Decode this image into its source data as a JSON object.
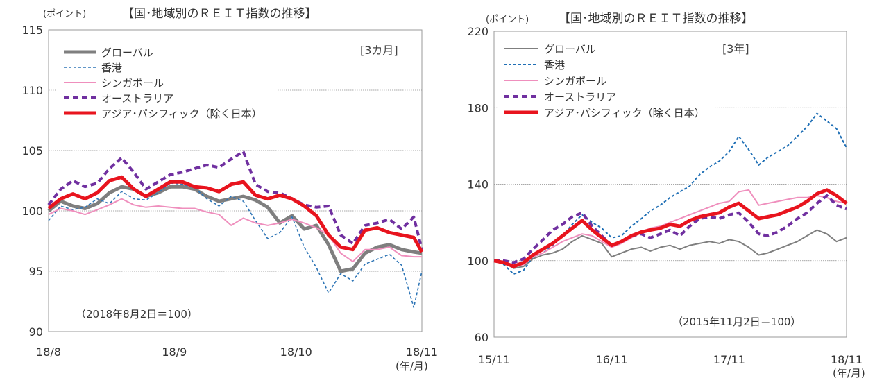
{
  "chart_data": [
    {
      "type": "line",
      "title": "【国･地域別のＲＥＩＴ指数の推移】",
      "ylabel": "(ポイント)",
      "period_label": "[3カ月]",
      "base_note": "（2018年8月2日＝100）",
      "x_unit": "(年/月)",
      "xlim": [
        "2018-08-02",
        "2018-11-02"
      ],
      "ylim": [
        90,
        115
      ],
      "yticks": [
        90,
        95,
        100,
        105,
        110,
        115
      ],
      "xtick_labels": [
        {
          "date": "2018-08-02",
          "label": "18/8"
        },
        {
          "date": "2018-09-02",
          "label": "18/9"
        },
        {
          "date": "2018-10-02",
          "label": "18/10"
        },
        {
          "date": "2018-11-02",
          "label": "18/11"
        }
      ],
      "grid": true,
      "legend_position": "top-left",
      "series": [
        {
          "name": "グローバル",
          "color": "#7f7f7f",
          "style": "solid-thick",
          "x": [
            "2018-08-02",
            "2018-08-05",
            "2018-08-08",
            "2018-08-11",
            "2018-08-14",
            "2018-08-17",
            "2018-08-20",
            "2018-08-23",
            "2018-08-26",
            "2018-08-29",
            "2018-09-01",
            "2018-09-04",
            "2018-09-07",
            "2018-09-10",
            "2018-09-13",
            "2018-09-16",
            "2018-09-19",
            "2018-09-22",
            "2018-09-25",
            "2018-09-28",
            "2018-10-01",
            "2018-10-04",
            "2018-10-07",
            "2018-10-10",
            "2018-10-13",
            "2018-10-16",
            "2018-10-19",
            "2018-10-22",
            "2018-10-25",
            "2018-10-28",
            "2018-10-31",
            "2018-11-02"
          ],
          "values": [
            100.0,
            100.8,
            100.4,
            100.2,
            100.6,
            101.5,
            102.0,
            101.8,
            101.2,
            101.5,
            102.0,
            102.0,
            101.8,
            101.2,
            100.8,
            101.0,
            101.2,
            100.9,
            100.3,
            99.0,
            99.6,
            98.5,
            98.8,
            97.2,
            95.0,
            95.2,
            96.5,
            97.0,
            97.2,
            96.8,
            96.6,
            96.5
          ]
        },
        {
          "name": "香港",
          "color": "#2e75b6",
          "style": "dash-fine",
          "x": [
            "2018-08-02",
            "2018-08-05",
            "2018-08-08",
            "2018-08-11",
            "2018-08-14",
            "2018-08-17",
            "2018-08-20",
            "2018-08-23",
            "2018-08-26",
            "2018-08-29",
            "2018-09-01",
            "2018-09-04",
            "2018-09-07",
            "2018-09-10",
            "2018-09-13",
            "2018-09-16",
            "2018-09-19",
            "2018-09-22",
            "2018-09-25",
            "2018-09-28",
            "2018-10-01",
            "2018-10-04",
            "2018-10-07",
            "2018-10-10",
            "2018-10-13",
            "2018-10-16",
            "2018-10-19",
            "2018-10-22",
            "2018-10-25",
            "2018-10-28",
            "2018-10-31",
            "2018-11-02"
          ],
          "values": [
            99.2,
            100.4,
            100.1,
            100.3,
            101.0,
            100.6,
            101.6,
            101.0,
            100.9,
            101.5,
            102.3,
            102.2,
            101.9,
            101.0,
            100.4,
            101.2,
            100.8,
            99.2,
            97.7,
            98.2,
            99.5,
            97.0,
            95.3,
            93.2,
            94.8,
            94.2,
            95.6,
            96.0,
            96.4,
            95.5,
            92.0,
            95.0
          ]
        },
        {
          "name": "シンガポール",
          "color": "#ef8fbd",
          "style": "solid",
          "x": [
            "2018-08-02",
            "2018-08-05",
            "2018-08-08",
            "2018-08-11",
            "2018-08-14",
            "2018-08-17",
            "2018-08-20",
            "2018-08-23",
            "2018-08-26",
            "2018-08-29",
            "2018-09-01",
            "2018-09-04",
            "2018-09-07",
            "2018-09-10",
            "2018-09-13",
            "2018-09-16",
            "2018-09-19",
            "2018-09-22",
            "2018-09-25",
            "2018-09-28",
            "2018-10-01",
            "2018-10-04",
            "2018-10-07",
            "2018-10-10",
            "2018-10-13",
            "2018-10-16",
            "2018-10-19",
            "2018-10-22",
            "2018-10-25",
            "2018-10-28",
            "2018-10-31",
            "2018-11-02"
          ],
          "values": [
            99.7,
            100.2,
            100.0,
            99.7,
            100.1,
            100.5,
            101.0,
            100.5,
            100.3,
            100.4,
            100.3,
            100.2,
            100.2,
            99.9,
            99.7,
            98.8,
            99.4,
            99.0,
            98.8,
            99.0,
            99.3,
            99.0,
            98.6,
            98.0,
            96.5,
            95.8,
            96.8,
            96.8,
            97.0,
            96.3,
            96.2,
            96.2
          ]
        },
        {
          "name": "オーストラリア",
          "color": "#7030a0",
          "style": "dash-thick",
          "x": [
            "2018-08-02",
            "2018-08-05",
            "2018-08-08",
            "2018-08-11",
            "2018-08-14",
            "2018-08-17",
            "2018-08-20",
            "2018-08-23",
            "2018-08-26",
            "2018-08-29",
            "2018-09-01",
            "2018-09-04",
            "2018-09-07",
            "2018-09-10",
            "2018-09-13",
            "2018-09-16",
            "2018-09-19",
            "2018-09-22",
            "2018-09-25",
            "2018-09-28",
            "2018-10-01",
            "2018-10-04",
            "2018-10-07",
            "2018-10-10",
            "2018-10-13",
            "2018-10-16",
            "2018-10-19",
            "2018-10-22",
            "2018-10-25",
            "2018-10-28",
            "2018-10-31",
            "2018-11-02"
          ],
          "values": [
            100.5,
            101.8,
            102.5,
            102.0,
            102.3,
            103.5,
            104.4,
            103.2,
            101.8,
            102.4,
            103.0,
            103.2,
            103.5,
            103.8,
            103.6,
            104.3,
            104.9,
            102.2,
            101.6,
            101.5,
            101.0,
            100.5,
            100.3,
            100.4,
            98.0,
            97.3,
            98.8,
            99.0,
            99.3,
            98.5,
            99.5,
            96.8
          ]
        },
        {
          "name": "アジア･パシフィック（除く日本）",
          "color": "#e8141e",
          "style": "solid-thick",
          "x": [
            "2018-08-02",
            "2018-08-05",
            "2018-08-08",
            "2018-08-11",
            "2018-08-14",
            "2018-08-17",
            "2018-08-20",
            "2018-08-23",
            "2018-08-26",
            "2018-08-29",
            "2018-09-01",
            "2018-09-04",
            "2018-09-07",
            "2018-09-10",
            "2018-09-13",
            "2018-09-16",
            "2018-09-19",
            "2018-09-22",
            "2018-09-25",
            "2018-09-28",
            "2018-10-01",
            "2018-10-04",
            "2018-10-07",
            "2018-10-10",
            "2018-10-13",
            "2018-10-16",
            "2018-10-19",
            "2018-10-22",
            "2018-10-25",
            "2018-10-28",
            "2018-10-31",
            "2018-11-02"
          ],
          "values": [
            100.2,
            101.0,
            101.4,
            101.0,
            101.5,
            102.5,
            102.8,
            101.8,
            101.2,
            101.8,
            102.4,
            102.4,
            102.0,
            101.9,
            101.6,
            102.2,
            102.4,
            101.3,
            101.0,
            101.3,
            101.0,
            100.4,
            99.6,
            98.0,
            97.0,
            96.8,
            98.4,
            98.6,
            98.2,
            98.0,
            97.8,
            96.6
          ]
        }
      ]
    },
    {
      "type": "line",
      "title": "【国･地域別のＲＥＩＴ指数の推移】",
      "ylabel": "(ポイント)",
      "period_label": "[3年]",
      "base_note": "（2015年11月2日＝100）",
      "x_unit": "(年/月)",
      "xlim": [
        "2015-11-02",
        "2018-11-02"
      ],
      "ylim": [
        60,
        220
      ],
      "yticks": [
        60,
        100,
        140,
        180,
        220
      ],
      "xtick_labels": [
        {
          "date": "2015-11-02",
          "label": "15/11"
        },
        {
          "date": "2016-11-02",
          "label": "16/11"
        },
        {
          "date": "2017-11-02",
          "label": "17/11"
        },
        {
          "date": "2018-11-02",
          "label": "18/11"
        }
      ],
      "grid": true,
      "legend_position": "top-left",
      "series": [
        {
          "name": "グローバル",
          "color": "#7f7f7f",
          "style": "solid",
          "x": [
            "2015-11",
            "2015-12",
            "2016-01",
            "2016-02",
            "2016-03",
            "2016-04",
            "2016-05",
            "2016-06",
            "2016-07",
            "2016-08",
            "2016-09",
            "2016-10",
            "2016-11",
            "2016-12",
            "2017-01",
            "2017-02",
            "2017-03",
            "2017-04",
            "2017-05",
            "2017-06",
            "2017-07",
            "2017-08",
            "2017-09",
            "2017-10",
            "2017-11",
            "2017-12",
            "2018-01",
            "2018-02",
            "2018-03",
            "2018-04",
            "2018-05",
            "2018-06",
            "2018-07",
            "2018-08",
            "2018-09",
            "2018-10",
            "2018-11"
          ],
          "values": [
            100,
            99,
            96,
            97,
            101,
            103,
            104,
            106,
            110,
            113,
            111,
            109,
            102,
            104,
            106,
            107,
            105,
            107,
            108,
            106,
            108,
            109,
            110,
            109,
            111,
            110,
            107,
            103,
            104,
            106,
            108,
            110,
            113,
            116,
            114,
            110,
            112
          ]
        },
        {
          "name": "香港",
          "color": "#1f6fb5",
          "style": "dash",
          "x": [
            "2015-11",
            "2015-12",
            "2016-01",
            "2016-02",
            "2016-03",
            "2016-04",
            "2016-05",
            "2016-06",
            "2016-07",
            "2016-08",
            "2016-09",
            "2016-10",
            "2016-11",
            "2016-12",
            "2017-01",
            "2017-02",
            "2017-03",
            "2017-04",
            "2017-05",
            "2017-06",
            "2017-07",
            "2017-08",
            "2017-09",
            "2017-10",
            "2017-11",
            "2017-12",
            "2018-01",
            "2018-02",
            "2018-03",
            "2018-04",
            "2018-05",
            "2018-06",
            "2018-07",
            "2018-08",
            "2018-09",
            "2018-10",
            "2018-11"
          ],
          "values": [
            100,
            98,
            93,
            95,
            102,
            104,
            108,
            113,
            119,
            124,
            120,
            117,
            112,
            113,
            118,
            122,
            126,
            129,
            133,
            136,
            139,
            145,
            149,
            152,
            157,
            165,
            158,
            150,
            154,
            157,
            160,
            165,
            170,
            177,
            173,
            169,
            159
          ]
        },
        {
          "name": "シンガポール",
          "color": "#ef8fbd",
          "style": "solid",
          "x": [
            "2015-11",
            "2015-12",
            "2016-01",
            "2016-02",
            "2016-03",
            "2016-04",
            "2016-05",
            "2016-06",
            "2016-07",
            "2016-08",
            "2016-09",
            "2016-10",
            "2016-11",
            "2016-12",
            "2017-01",
            "2017-02",
            "2017-03",
            "2017-04",
            "2017-05",
            "2017-06",
            "2017-07",
            "2017-08",
            "2017-09",
            "2017-10",
            "2017-11",
            "2017-12",
            "2018-01",
            "2018-02",
            "2018-03",
            "2018-04",
            "2018-05",
            "2018-06",
            "2018-07",
            "2018-08",
            "2018-09",
            "2018-10",
            "2018-11"
          ],
          "values": [
            100,
            99,
            97,
            98,
            102,
            104,
            107,
            110,
            112,
            114,
            113,
            110,
            107,
            109,
            112,
            115,
            117,
            118,
            120,
            122,
            124,
            126,
            128,
            130,
            131,
            136,
            137,
            129,
            130,
            131,
            132,
            133,
            133,
            134,
            133,
            131,
            130
          ]
        },
        {
          "name": "オーストラリア",
          "color": "#7030a0",
          "style": "dash-thick",
          "x": [
            "2015-11",
            "2015-12",
            "2016-01",
            "2016-02",
            "2016-03",
            "2016-04",
            "2016-05",
            "2016-06",
            "2016-07",
            "2016-08",
            "2016-09",
            "2016-10",
            "2016-11",
            "2016-12",
            "2017-01",
            "2017-02",
            "2017-03",
            "2017-04",
            "2017-05",
            "2017-06",
            "2017-07",
            "2017-08",
            "2017-09",
            "2017-10",
            "2017-11",
            "2017-12",
            "2018-01",
            "2018-02",
            "2018-03",
            "2018-04",
            "2018-05",
            "2018-06",
            "2018-07",
            "2018-08",
            "2018-09",
            "2018-10",
            "2018-11"
          ],
          "values": [
            100,
            100,
            99,
            101,
            106,
            111,
            116,
            119,
            123,
            125,
            118,
            113,
            108,
            110,
            113,
            114,
            112,
            114,
            116,
            113,
            118,
            122,
            123,
            122,
            124,
            125,
            120,
            114,
            113,
            115,
            118,
            122,
            125,
            130,
            134,
            129,
            127
          ]
        },
        {
          "name": "アジア･パシフィック（除く日本）",
          "color": "#e8141e",
          "style": "solid-thick",
          "x": [
            "2015-11",
            "2015-12",
            "2016-01",
            "2016-02",
            "2016-03",
            "2016-04",
            "2016-05",
            "2016-06",
            "2016-07",
            "2016-08",
            "2016-09",
            "2016-10",
            "2016-11",
            "2016-12",
            "2017-01",
            "2017-02",
            "2017-03",
            "2017-04",
            "2017-05",
            "2017-06",
            "2017-07",
            "2017-08",
            "2017-09",
            "2017-10",
            "2017-11",
            "2017-12",
            "2018-01",
            "2018-02",
            "2018-03",
            "2018-04",
            "2018-05",
            "2018-06",
            "2018-07",
            "2018-08",
            "2018-09",
            "2018-10",
            "2018-11"
          ],
          "values": [
            100,
            99,
            97,
            99,
            103,
            106,
            109,
            113,
            117,
            121,
            116,
            112,
            108,
            110,
            113,
            115,
            116,
            117,
            119,
            118,
            121,
            123,
            124,
            125,
            128,
            130,
            126,
            122,
            123,
            124,
            126,
            128,
            131,
            135,
            137,
            134,
            130
          ]
        }
      ]
    }
  ]
}
